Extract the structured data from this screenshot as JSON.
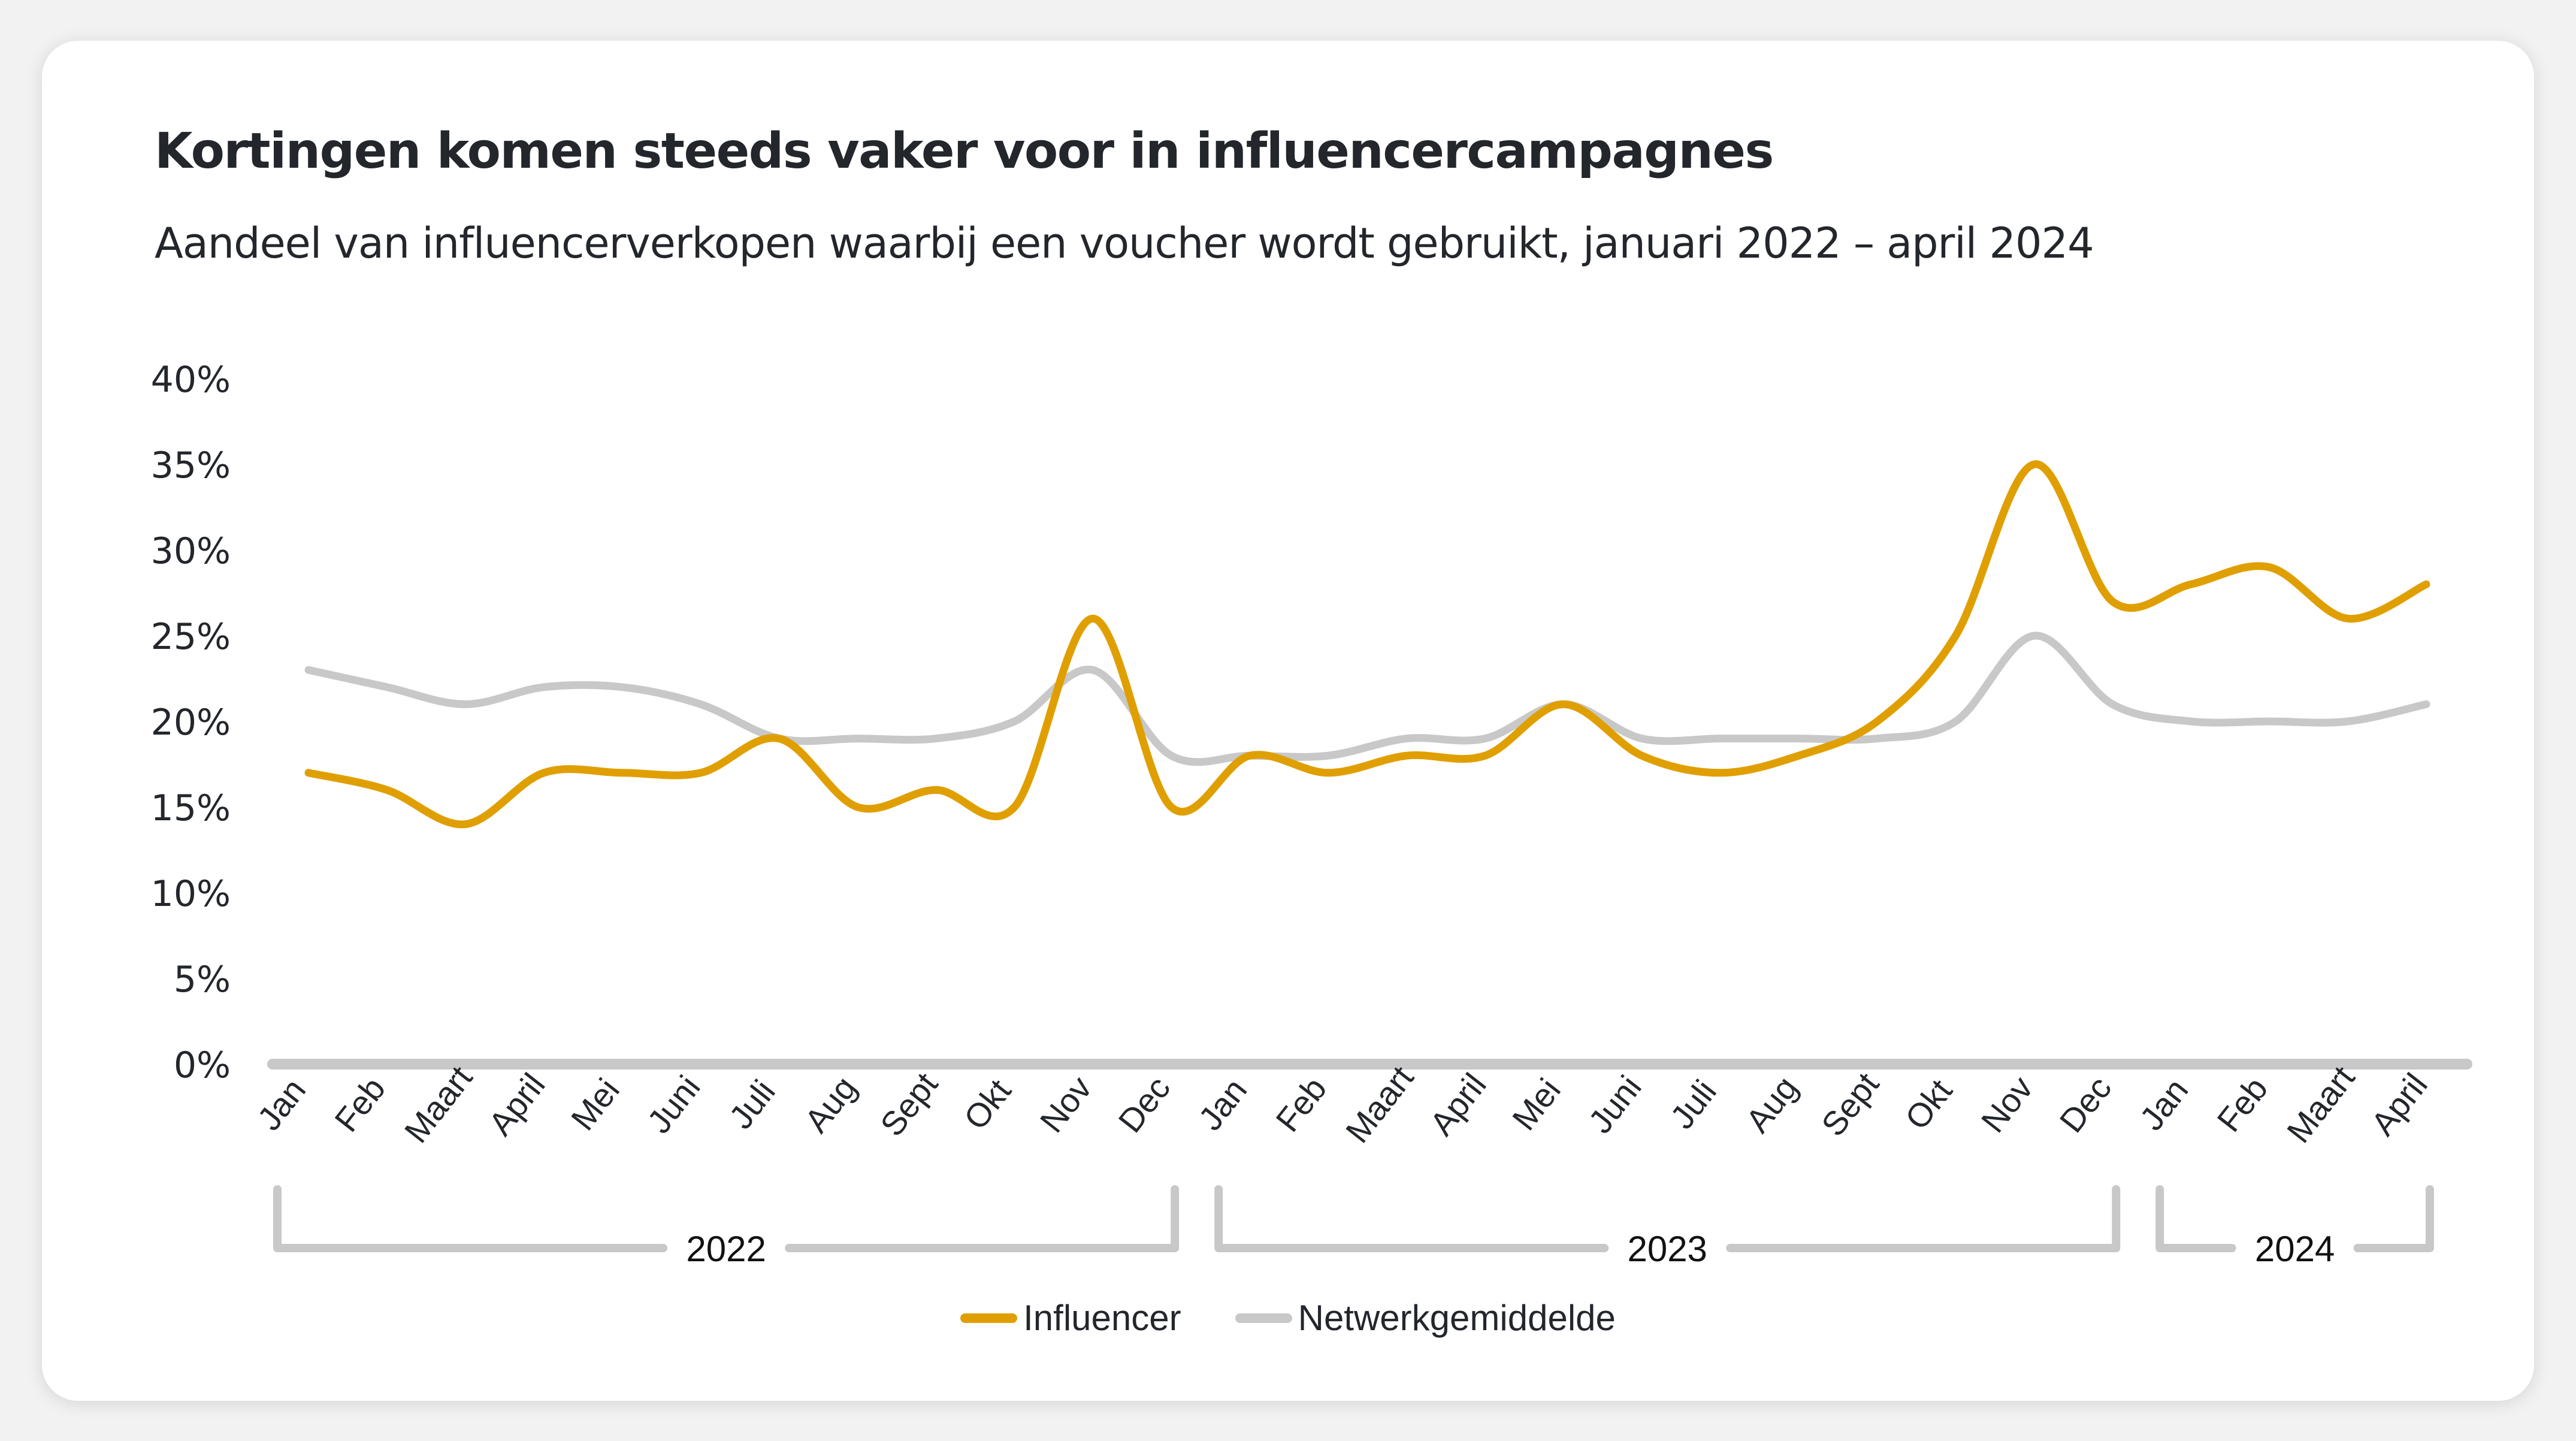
{
  "title": "Kortingen komen steeds vaker voor in influencercampagnes",
  "subtitle": "Aandeel van influencerverkopen waarbij een voucher wordt gebruikt, januari 2022 – april 2024",
  "legend": [
    {
      "label": "Influencer",
      "color": "#E09F00"
    },
    {
      "label": "Netwerkgemiddelde",
      "color": "#C8C8C8"
    }
  ],
  "chart_data": {
    "type": "line",
    "title": "Kortingen komen steeds vaker voor in influencercampagnes",
    "subtitle": "Aandeel van influencerverkopen waarbij een voucher wordt gebruikt, januari 2022 – april 2024",
    "xlabel": "",
    "ylabel": "",
    "ylim": [
      0,
      40
    ],
    "y_ticks": [
      "0%",
      "5%",
      "10%",
      "15%",
      "20%",
      "25%",
      "30%",
      "35%",
      "40%"
    ],
    "y_tick_values": [
      0,
      5,
      10,
      15,
      20,
      25,
      30,
      35,
      40
    ],
    "grid": false,
    "legend_position": "bottom",
    "categories": [
      "Jan",
      "Feb",
      "Maart",
      "April",
      "Mei",
      "Juni",
      "Juli",
      "Aug",
      "Sept",
      "Okt",
      "Nov",
      "Dec",
      "Jan",
      "Feb",
      "Maart",
      "April",
      "Mei",
      "Juni",
      "Juli",
      "Aug",
      "Sept",
      "Okt",
      "Nov",
      "Dec",
      "Jan",
      "Feb",
      "Maart",
      "April"
    ],
    "year_groups": [
      {
        "label": "2022",
        "start": 0,
        "end": 11
      },
      {
        "label": "2023",
        "start": 12,
        "end": 23
      },
      {
        "label": "2024",
        "start": 24,
        "end": 27
      }
    ],
    "series": [
      {
        "name": "Influencer",
        "color": "#E09F00",
        "values": [
          17,
          16,
          14,
          17,
          17,
          17,
          19,
          15,
          16,
          15,
          26,
          15,
          18,
          17,
          18,
          18,
          21,
          18,
          17,
          18,
          20,
          25,
          35,
          27,
          28,
          29,
          26,
          28
        ]
      },
      {
        "name": "Netwerkgemiddelde",
        "color": "#C8C8C8",
        "values": [
          23,
          22,
          21,
          22,
          22,
          21,
          19,
          19,
          19,
          20,
          23,
          18,
          18,
          18,
          19,
          19,
          21,
          19,
          19,
          19,
          19,
          20,
          25,
          21,
          20,
          20,
          20,
          21
        ]
      }
    ]
  }
}
